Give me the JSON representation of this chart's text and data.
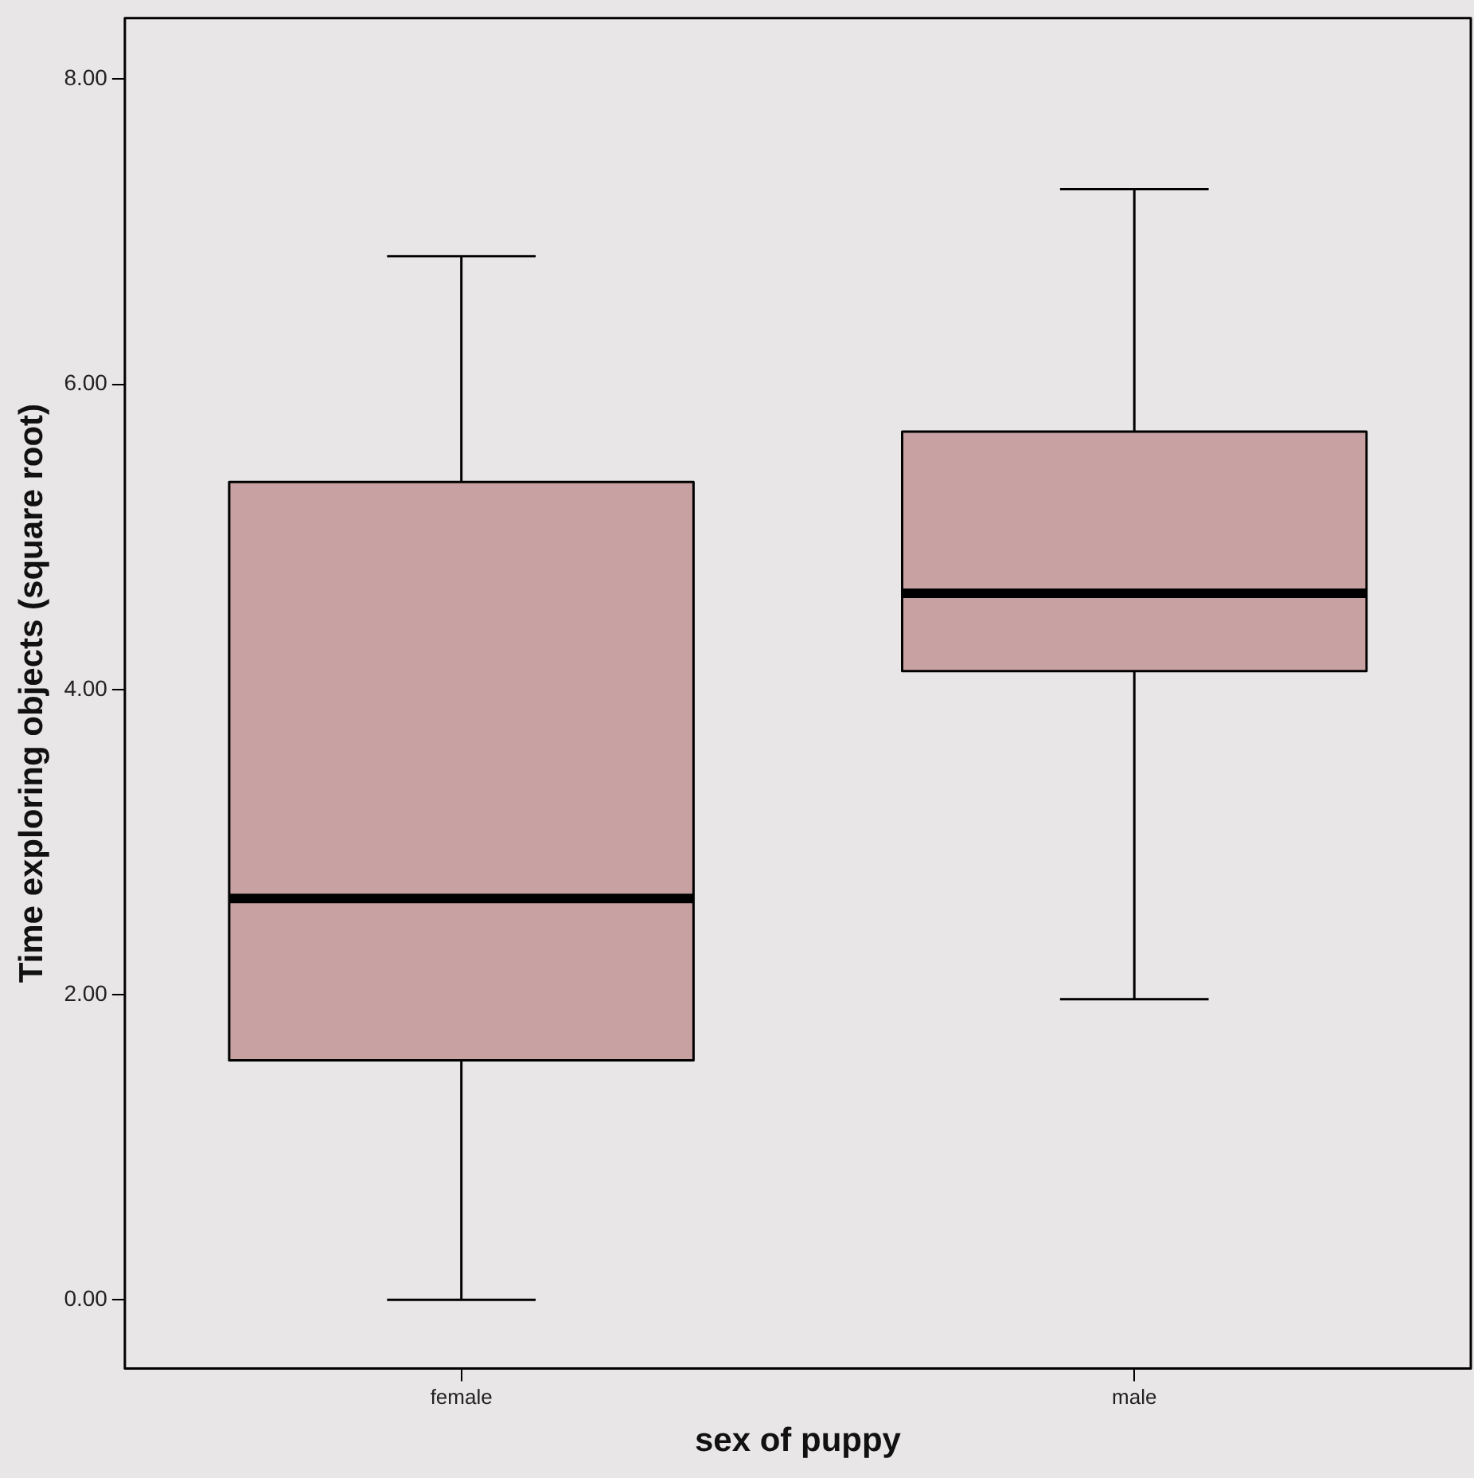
{
  "chart_data": {
    "type": "box",
    "xlabel": "sex of puppy",
    "ylabel": "Time exploring objects (square root)",
    "categories": [
      "female",
      "male"
    ],
    "color": "#c8a2a2",
    "boxes": [
      {
        "low": 0,
        "q1": 1.57,
        "median": 2.63,
        "q3": 5.36,
        "high": 6.84
      },
      {
        "low": 1.97,
        "q1": 4.12,
        "median": 4.63,
        "q3": 5.69,
        "high": 7.28
      }
    ],
    "ylim": [
      -0.45,
      8.4
    ],
    "yticks": [
      {
        "value": 0,
        "label": "0.00"
      },
      {
        "value": 2,
        "label": "2.00"
      },
      {
        "value": 4,
        "label": "4.00"
      },
      {
        "value": 6,
        "label": "6.00"
      },
      {
        "value": 8,
        "label": "8.00"
      }
    ],
    "grid": false,
    "legend": false
  }
}
